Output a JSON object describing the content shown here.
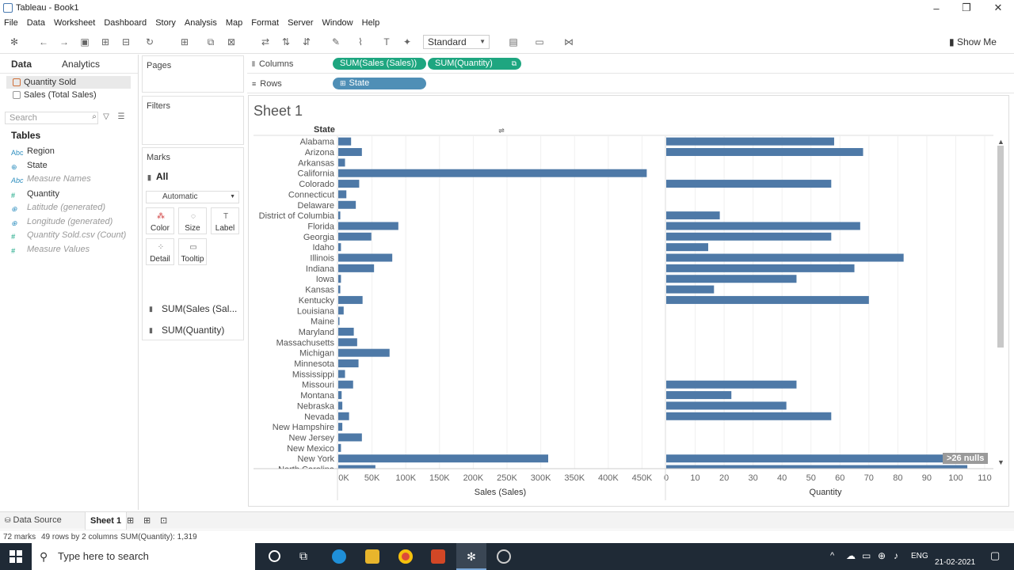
{
  "window": {
    "title": "Tableau - Book1",
    "controls": [
      "–",
      "❐",
      "✕"
    ]
  },
  "menu": [
    "File",
    "Data",
    "Worksheet",
    "Dashboard",
    "Story",
    "Analysis",
    "Map",
    "Format",
    "Server",
    "Window",
    "Help"
  ],
  "toolbar": {
    "fit_select": "Standard",
    "show_me": "Show Me"
  },
  "data_pane": {
    "tabs": [
      "Data",
      "Analytics"
    ],
    "sources": [
      "Quantity Sold",
      "Sales (Total Sales)"
    ],
    "search_placeholder": "Search",
    "tables_header": "Tables",
    "fields": [
      {
        "name": "Region",
        "italic": false,
        "kind": "dim"
      },
      {
        "name": "State",
        "italic": false,
        "kind": "geo"
      },
      {
        "name": "Measure Names",
        "italic": true,
        "kind": "dim"
      },
      {
        "name": "Quantity",
        "italic": false,
        "kind": "meas"
      },
      {
        "name": "Latitude (generated)",
        "italic": true,
        "kind": "geo"
      },
      {
        "name": "Longitude (generated)",
        "italic": true,
        "kind": "geo"
      },
      {
        "name": "Quantity Sold.csv (Count)",
        "italic": true,
        "kind": "meas"
      },
      {
        "name": "Measure Values",
        "italic": true,
        "kind": "meas"
      }
    ]
  },
  "cards": {
    "pages": "Pages",
    "filters": "Filters",
    "marks": "Marks",
    "marks_all": "All",
    "mark_type": "Automatic",
    "buttons": [
      "Color",
      "Size",
      "Label",
      "Detail",
      "Tooltip"
    ],
    "mark_pills": [
      "SUM(Sales (Sal...",
      "SUM(Quantity)"
    ]
  },
  "shelves": {
    "columns_label": "Columns",
    "rows_label": "Rows",
    "column_pills": [
      "SUM(Sales (Sales))",
      "SUM(Quantity)"
    ],
    "row_pills": [
      "State"
    ]
  },
  "sheet": {
    "title": "Sheet 1",
    "row_header": "State",
    "nulls_badge": ">26 nulls"
  },
  "chart_data": {
    "type": "bar",
    "orientation": "horizontal",
    "categories": [
      "Alabama",
      "Arizona",
      "Arkansas",
      "California",
      "Colorado",
      "Connecticut",
      "Delaware",
      "District of Columbia",
      "Florida",
      "Georgia",
      "Idaho",
      "Illinois",
      "Indiana",
      "Iowa",
      "Kansas",
      "Kentucky",
      "Louisiana",
      "Maine",
      "Maryland",
      "Massachusetts",
      "Michigan",
      "Minnesota",
      "Mississippi",
      "Missouri",
      "Montana",
      "Nebraska",
      "Nevada",
      "New Hampshire",
      "New Jersey",
      "New Mexico",
      "New York",
      "North Carolina"
    ],
    "series": [
      {
        "name": "Sales (Sales)",
        "values": [
          19000,
          35000,
          10000,
          457000,
          31000,
          12000,
          26000,
          3000,
          89000,
          49000,
          4000,
          80000,
          53000,
          4000,
          3000,
          36000,
          8000,
          1000,
          23000,
          28000,
          76000,
          30000,
          10000,
          22000,
          5000,
          6000,
          16000,
          6000,
          35000,
          4000,
          311000,
          55000
        ],
        "xlabel": "Sales (Sales)",
        "ticks": [
          "0K",
          "50K",
          "100K",
          "150K",
          "200K",
          "250K",
          "300K",
          "350K",
          "400K",
          "450K"
        ],
        "xlim": [
          0,
          480000
        ]
      },
      {
        "name": "Quantity",
        "values": [
          58,
          68,
          null,
          null,
          57,
          null,
          null,
          18.5,
          67,
          57,
          14.5,
          82,
          65,
          45,
          16.5,
          70,
          null,
          null,
          null,
          null,
          null,
          null,
          null,
          45,
          22.5,
          41.5,
          57,
          null,
          null,
          null,
          104,
          104
        ],
        "xlabel": "Quantity",
        "ticks": [
          "0",
          "10",
          "20",
          "30",
          "40",
          "50",
          "60",
          "70",
          "80",
          "90",
          "100",
          "110"
        ],
        "xlim": [
          0,
          110
        ]
      }
    ],
    "grid": true
  },
  "bottom": {
    "data_source_tab": "Data Source",
    "sheet_tab": "Sheet 1"
  },
  "status": {
    "marks": "72 marks",
    "rows": "49 rows by 2 columns",
    "sum": "SUM(Quantity): 1,319"
  },
  "taskbar": {
    "search_placeholder": "Type here to search",
    "lang": "ENG",
    "date": "21-02-2021"
  },
  "colors": {
    "bar": "#4e79a7",
    "green_pill": "#1ea680",
    "blue_pill": "#4f8fb6"
  }
}
